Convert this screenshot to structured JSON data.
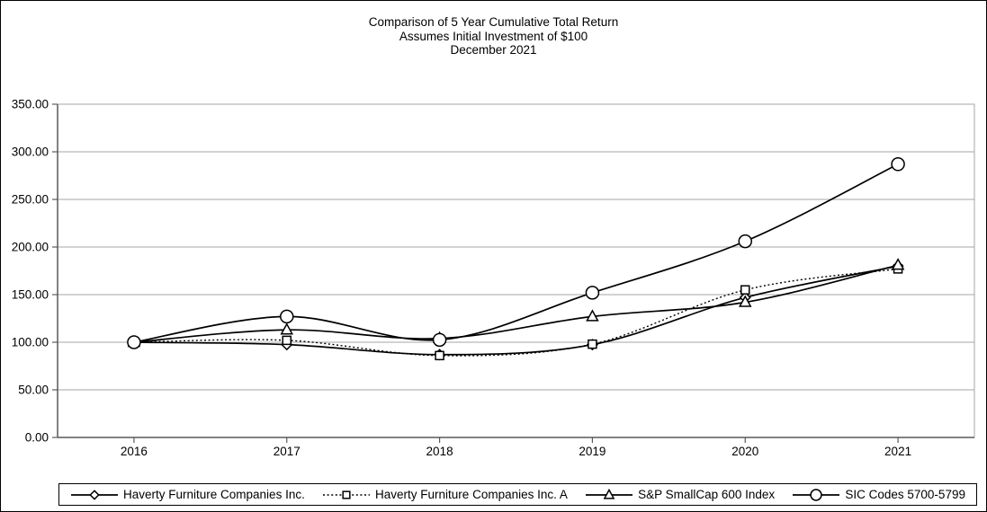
{
  "title": {
    "line1": "Comparison of 5 Year Cumulative Total Return",
    "line2": "Assumes Initial Investment of $100",
    "line3": "December 2021"
  },
  "chart_data": {
    "type": "line",
    "x_categories": [
      "2016",
      "2017",
      "2018",
      "2019",
      "2020",
      "2021"
    ],
    "y_tick_labels": [
      "0.00",
      "50.00",
      "100.00",
      "150.00",
      "200.00",
      "250.00",
      "300.00",
      "350.00"
    ],
    "ylim": [
      0,
      350
    ],
    "y_tick_step": 50,
    "grid": true,
    "legend_position": "bottom",
    "line_color": "#000000",
    "marker_fill": "#ffffff",
    "grid_color": "#a6a6a6",
    "axis_color": "#595959",
    "series": [
      {
        "name": "Haverty Furniture Companies Inc.",
        "marker": "diamond",
        "line_style": "solid",
        "values": [
          100,
          97.5,
          87,
          97.5,
          147,
          180
        ]
      },
      {
        "name": "Haverty Furniture Companies Inc. A",
        "marker": "square",
        "line_style": "dotted",
        "values": [
          100,
          102,
          86,
          98,
          155,
          177
        ]
      },
      {
        "name": "S&P SmallCap 600 Index",
        "marker": "triangle",
        "line_style": "solid",
        "values": [
          100,
          113,
          104,
          127,
          142,
          181
        ]
      },
      {
        "name": "SIC Codes 5700-5799",
        "marker": "circle",
        "line_style": "solid",
        "values": [
          100,
          127,
          102.5,
          152,
          206,
          287
        ]
      }
    ]
  }
}
